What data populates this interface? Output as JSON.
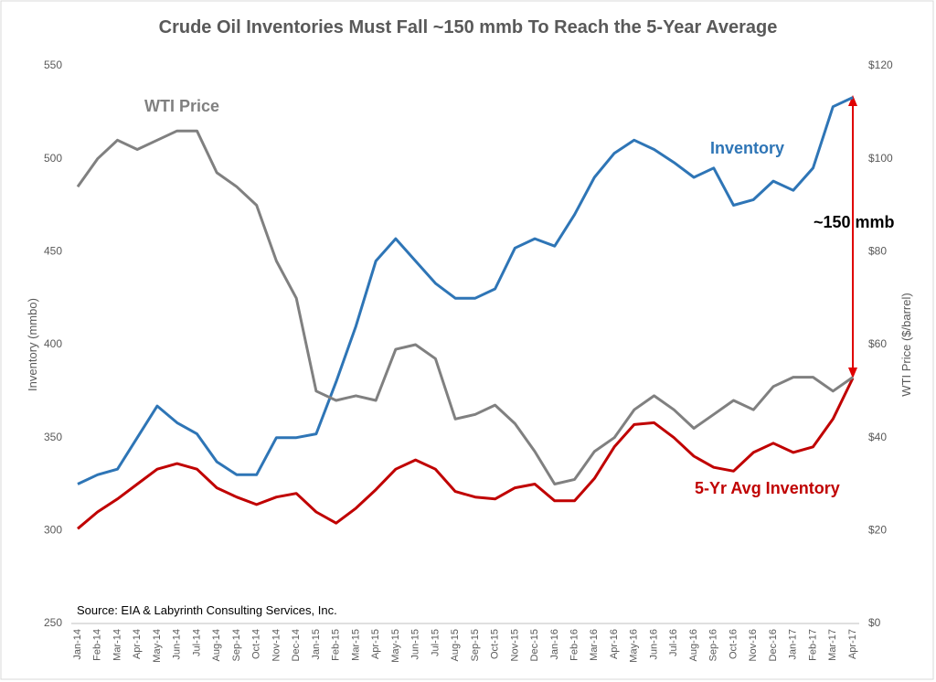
{
  "chart_data": {
    "type": "line",
    "title": "Crude Oil Inventories Must Fall ~150 mmb To Reach the 5-Year Average",
    "y_label": "Inventory (mmbo)",
    "y2_label": "WTI Price ($/barrel)",
    "source": "Source:  EIA & Labyrinth Consulting Services, Inc.",
    "annotations": {
      "wti": "WTI Price",
      "inventory": "Inventory",
      "avg": "5-Yr Avg Inventory",
      "gap": "~150 mmb"
    },
    "categories": [
      "Jan-14",
      "Feb-14",
      "Mar-14",
      "Apr-14",
      "May-14",
      "Jun-14",
      "Jul-14",
      "Aug-14",
      "Sep-14",
      "Oct-14",
      "Nov-14",
      "Dec-14",
      "Jan-15",
      "Feb-15",
      "Mar-15",
      "Apr-15",
      "May-15",
      "Jun-15",
      "Jul-15",
      "Aug-15",
      "Sep-15",
      "Oct-15",
      "Nov-15",
      "Dec-15",
      "Jan-16",
      "Feb-16",
      "Mar-16",
      "Apr-16",
      "May-16",
      "Jun-16",
      "Jul-16",
      "Aug-16",
      "Sep-16",
      "Oct-16",
      "Nov-16",
      "Dec-16",
      "Jan-17",
      "Feb-17",
      "Mar-17",
      "Apr-17"
    ],
    "series": [
      {
        "name": "Inventory",
        "color": "#2e75b6",
        "values": [
          325,
          330,
          333,
          350,
          367,
          358,
          352,
          337,
          330,
          330,
          350,
          350,
          352,
          380,
          410,
          445,
          457,
          445,
          433,
          425,
          425,
          430,
          452,
          457,
          453,
          470,
          490,
          503,
          510,
          505,
          498,
          490,
          495,
          475,
          478,
          488,
          483,
          495,
          528,
          533
        ]
      },
      {
        "name": "5-Yr Avg Inventory",
        "color": "#c00000",
        "values": [
          301,
          310,
          317,
          325,
          333,
          336,
          333,
          323,
          318,
          314,
          318,
          320,
          310,
          304,
          312,
          322,
          333,
          338,
          333,
          321,
          318,
          317,
          323,
          325,
          316,
          316,
          328,
          345,
          357,
          358,
          350,
          340,
          334,
          332,
          342,
          347,
          342,
          345,
          360,
          382
        ]
      },
      {
        "name": "WTI Price",
        "color": "#808080",
        "axis": "y2",
        "values": [
          94,
          100,
          104,
          102,
          104,
          106,
          106,
          97,
          94,
          90,
          78,
          70,
          50,
          48,
          49,
          48,
          59,
          60,
          57,
          44,
          45,
          47,
          43,
          37,
          30,
          31,
          37,
          40,
          46,
          49,
          46,
          42,
          45,
          48,
          46,
          51,
          53,
          53,
          50,
          53
        ]
      }
    ],
    "ylim": [
      250,
      550
    ],
    "yticks": [
      250,
      300,
      350,
      400,
      450,
      500,
      550
    ],
    "y2lim": [
      0,
      120
    ],
    "y2ticks": [
      {
        "value": 0,
        "label": "$0"
      },
      {
        "value": 20,
        "label": "$20"
      },
      {
        "value": 40,
        "label": "$40"
      },
      {
        "value": 60,
        "label": "$60"
      },
      {
        "value": 80,
        "label": "$80"
      },
      {
        "value": 100,
        "label": "$100"
      },
      {
        "value": 120,
        "label": "$120"
      }
    ],
    "grid": false
  }
}
